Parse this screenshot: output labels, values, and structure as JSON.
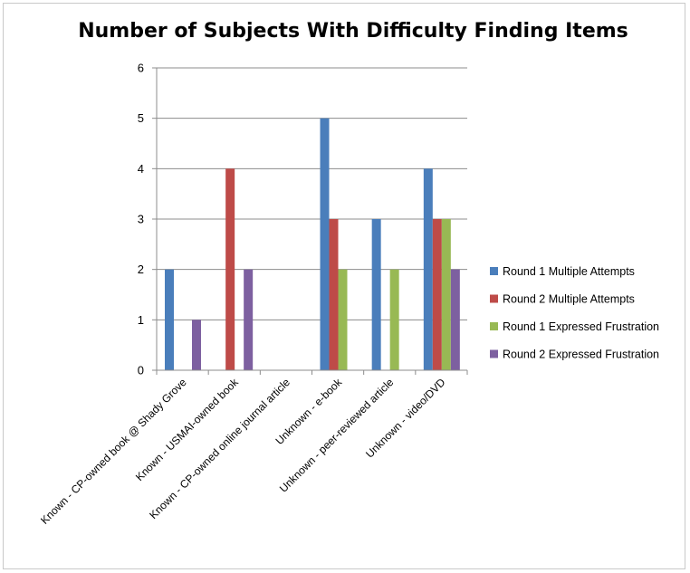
{
  "chart_data": {
    "type": "bar",
    "title": "Number of Subjects With Difficulty Finding Items",
    "xlabel": "",
    "ylabel": "",
    "ylim": [
      0,
      6
    ],
    "yticks": [
      0,
      1,
      2,
      3,
      4,
      5,
      6
    ],
    "grid": true,
    "legend_position": "right",
    "categories": [
      "Known - CP-owned book @ Shady Grove",
      "Known - USMAI-owned book",
      "Known - CP-owned online journal article",
      "Unknown - e-book",
      "Unknown - peer-reviewed article",
      "Unknown - video/DVD"
    ],
    "series": [
      {
        "name": "Round 1 Multiple Attempts",
        "color": "#4a7ebb",
        "values": [
          2,
          0,
          0,
          5,
          3,
          4
        ]
      },
      {
        "name": "Round 2 Multiple Attempts",
        "color": "#be4b48",
        "values": [
          0,
          4,
          0,
          3,
          0,
          3
        ]
      },
      {
        "name": "Round 1 Expressed Frustration",
        "color": "#98b954",
        "values": [
          0,
          0,
          0,
          2,
          2,
          3
        ]
      },
      {
        "name": "Round 2 Expressed Frustration",
        "color": "#7d60a0",
        "values": [
          1,
          2,
          0,
          0,
          0,
          2
        ]
      }
    ]
  }
}
